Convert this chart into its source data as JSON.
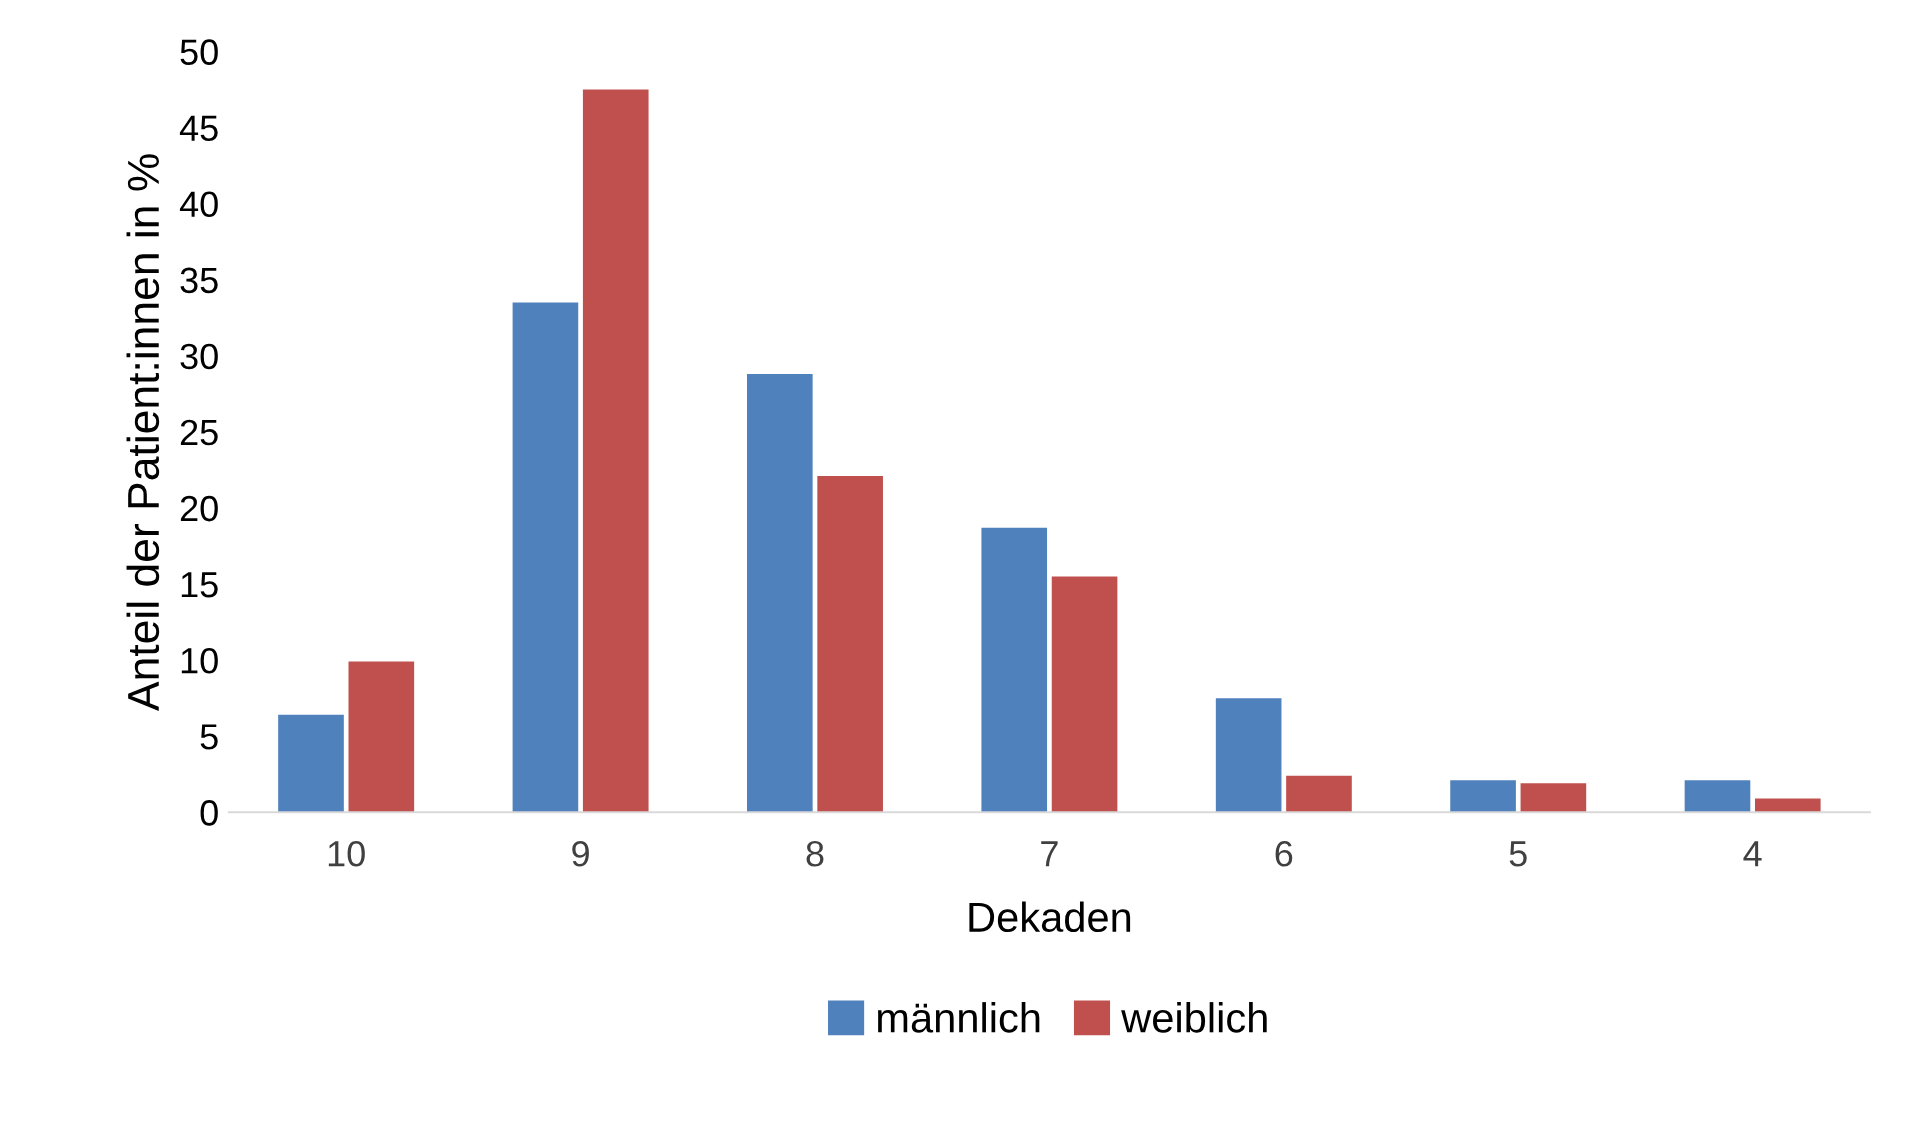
{
  "chart_data": {
    "type": "bar",
    "xlabel": "Dekaden",
    "ylabel": "Anteil der Patient:innen in %",
    "categories": [
      "10",
      "9",
      "8",
      "7",
      "6",
      "5",
      "4"
    ],
    "series": [
      {
        "name": "männlich",
        "color": "#4f81bd",
        "values": [
          6.4,
          33.5,
          28.8,
          18.7,
          7.5,
          2.1,
          2.1
        ]
      },
      {
        "name": "weiblich",
        "color": "#c0504d",
        "values": [
          9.9,
          47.5,
          22.1,
          15.5,
          2.4,
          1.9,
          0.9
        ]
      }
    ],
    "ylim": [
      0,
      50
    ],
    "yticks": [
      0,
      5,
      10,
      15,
      20,
      25,
      30,
      35,
      40,
      45,
      50
    ],
    "grid": false,
    "legend": "bottom"
  }
}
